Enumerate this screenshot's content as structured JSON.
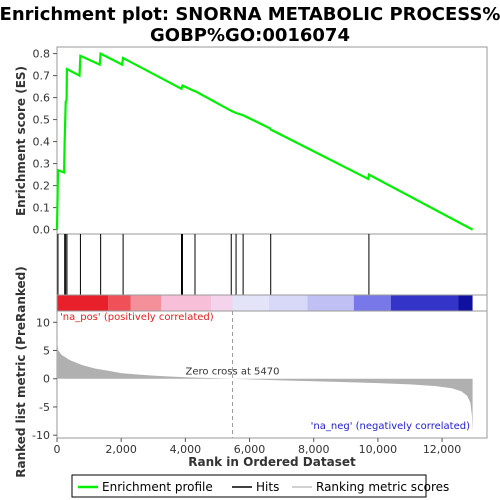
{
  "title_line1": "Enrichment plot: SNORNA METABOLIC PROCESS%",
  "title_line2": "GOBP%GO:0016074",
  "colors": {
    "es_line": "#00ee00",
    "hits": "#000000",
    "metric_fill": "#b0b0b0",
    "pos_label": "#e02020",
    "neg_label": "#2020d0",
    "zero_line": "#999999"
  },
  "chart_data": [
    {
      "type": "line",
      "name": "Enrichment profile",
      "ylabel": "Enrichment score (ES)",
      "xlim": [
        0,
        13400
      ],
      "ylim": [
        -0.02,
        0.83
      ],
      "yticks": [
        0.0,
        0.1,
        0.2,
        0.3,
        0.4,
        0.5,
        0.6,
        0.7,
        0.8
      ],
      "ytick_labels": [
        "0.0",
        "0.1",
        "0.2",
        "0.3",
        "0.4",
        "0.5",
        "0.6",
        "0.7",
        "0.8"
      ],
      "points": [
        [
          0,
          0.0
        ],
        [
          30,
          0.27
        ],
        [
          220,
          0.26
        ],
        [
          240,
          0.41
        ],
        [
          270,
          0.58
        ],
        [
          300,
          0.59
        ],
        [
          310,
          0.73
        ],
        [
          700,
          0.7
        ],
        [
          730,
          0.79
        ],
        [
          1330,
          0.75
        ],
        [
          1360,
          0.8
        ],
        [
          2030,
          0.75
        ],
        [
          2060,
          0.78
        ],
        [
          3880,
          0.64
        ],
        [
          3910,
          0.655
        ],
        [
          4280,
          0.63
        ],
        [
          4300,
          0.63
        ],
        [
          5430,
          0.54
        ],
        [
          5580,
          0.53
        ],
        [
          5800,
          0.52
        ],
        [
          6640,
          0.46
        ],
        [
          6660,
          0.455
        ],
        [
          9700,
          0.23
        ],
        [
          9720,
          0.25
        ],
        [
          12950,
          0.0
        ]
      ]
    },
    {
      "type": "hits",
      "name": "Hits",
      "positions": [
        30,
        240,
        270,
        310,
        730,
        1360,
        2060,
        3880,
        3910,
        4300,
        5430,
        5580,
        5800,
        6660,
        9720
      ]
    },
    {
      "type": "heatstrip",
      "segments": [
        {
          "start": 0,
          "end": 1600,
          "color": "#e8202c"
        },
        {
          "start": 1600,
          "end": 2300,
          "color": "#f05058"
        },
        {
          "start": 2300,
          "end": 3250,
          "color": "#f4909a"
        },
        {
          "start": 3250,
          "end": 4800,
          "color": "#f8c0d8"
        },
        {
          "start": 4800,
          "end": 5470,
          "color": "#f4d4ec"
        },
        {
          "start": 5470,
          "end": 6600,
          "color": "#e4e4f8"
        },
        {
          "start": 6600,
          "end": 7800,
          "color": "#d8d8f8"
        },
        {
          "start": 7800,
          "end": 9250,
          "color": "#c0c0f4"
        },
        {
          "start": 9250,
          "end": 10400,
          "color": "#7878e8"
        },
        {
          "start": 10400,
          "end": 12500,
          "color": "#3434c8"
        },
        {
          "start": 12500,
          "end": 12950,
          "color": "#1010a0"
        }
      ]
    },
    {
      "type": "area",
      "name": "Ranking metric scores",
      "xlabel": "Rank in Ordered Dataset",
      "ylabel": "Ranked list metric (PreRanked)",
      "xlim": [
        0,
        13400
      ],
      "ylim": [
        -10.5,
        12
      ],
      "yticks": [
        10,
        5,
        0,
        -5,
        -10
      ],
      "ytick_labels": [
        "10",
        "5",
        "0",
        "-5",
        "-10"
      ],
      "xticks": [
        0,
        2000,
        4000,
        6000,
        8000,
        10000,
        12000
      ],
      "xtick_labels": [
        "0",
        "2,000",
        "4,000",
        "6,000",
        "8,000",
        "10,000",
        "12,000"
      ],
      "points": [
        [
          0,
          6.8
        ],
        [
          40,
          5.0
        ],
        [
          150,
          4.2
        ],
        [
          400,
          3.3
        ],
        [
          800,
          2.4
        ],
        [
          1200,
          1.8
        ],
        [
          1600,
          1.4
        ],
        [
          2000,
          1.0
        ],
        [
          2500,
          0.75
        ],
        [
          3000,
          0.55
        ],
        [
          3500,
          0.4
        ],
        [
          4000,
          0.28
        ],
        [
          4500,
          0.18
        ],
        [
          5000,
          0.08
        ],
        [
          5470,
          0.0
        ],
        [
          6000,
          -0.12
        ],
        [
          7000,
          -0.3
        ],
        [
          8000,
          -0.45
        ],
        [
          9000,
          -0.6
        ],
        [
          10000,
          -0.78
        ],
        [
          11000,
          -1.0
        ],
        [
          11800,
          -1.3
        ],
        [
          12300,
          -1.7
        ],
        [
          12600,
          -2.2
        ],
        [
          12780,
          -3.0
        ],
        [
          12880,
          -4.2
        ],
        [
          12930,
          -6.5
        ],
        [
          12950,
          -9.3
        ]
      ],
      "zero_cross_label": "Zero cross at 5470",
      "zero_cross": 5470,
      "pos_label": "'na_pos' (positively correlated)",
      "neg_label": "'na_neg' (negatively correlated)"
    }
  ],
  "legend": {
    "items": [
      "Enrichment profile",
      "Hits",
      "Ranking metric scores"
    ]
  }
}
